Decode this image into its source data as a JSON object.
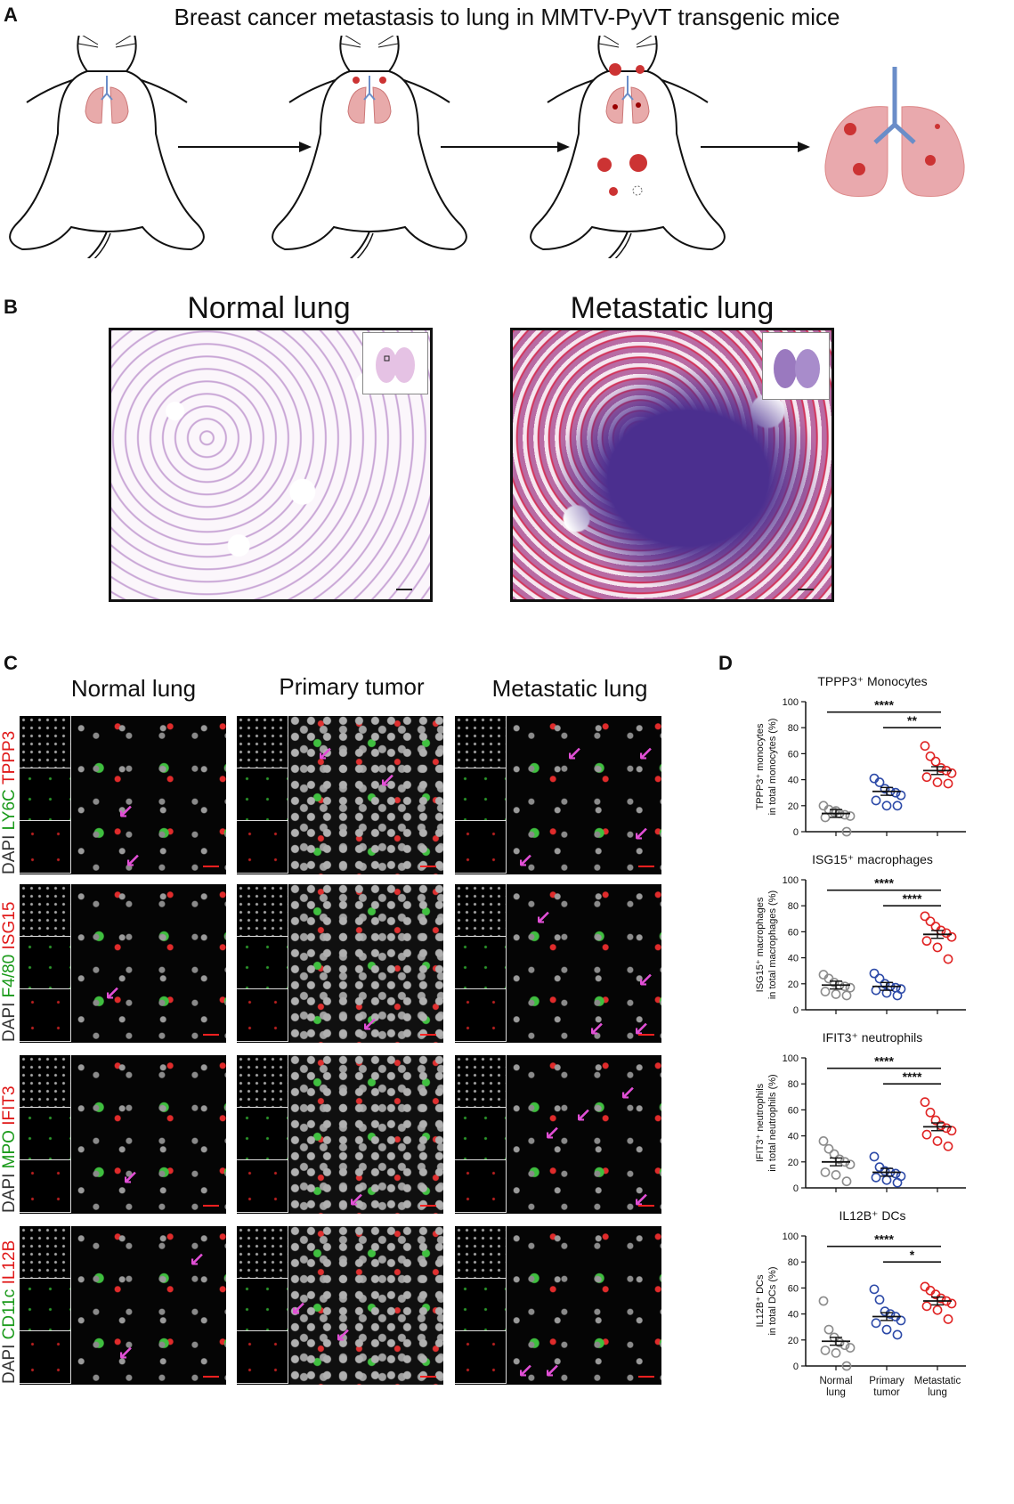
{
  "panels": {
    "a": {
      "letter": "A",
      "title": "Breast cancer metastasis to lung in MMTV-PyVT transgenic mice"
    },
    "b": {
      "letter": "B",
      "left_title": "Normal lung",
      "right_title": "Metastatic lung"
    },
    "c": {
      "letter": "C",
      "columns": [
        "Normal lung",
        "Primary tumor",
        "Metastatic lung"
      ],
      "rows": [
        {
          "l1": "DAPI",
          "l2": "LY6C",
          "l3": "TPPP3"
        },
        {
          "l1": "DAPI",
          "l2": "F4/80",
          "l3": "ISG15"
        },
        {
          "l1": "DAPI",
          "l2": "MPO",
          "l3": "IFIT3"
        },
        {
          "l1": "DAPI",
          "l2": "CD11c",
          "l3": "IL12B"
        }
      ]
    },
    "d": {
      "letter": "D"
    }
  },
  "colors": {
    "normal": "#8c8c8c",
    "primary": "#2d4aa8",
    "metastatic": "#e02424",
    "arrow": "#e24fd6"
  },
  "chart_data": [
    {
      "type": "scatter",
      "title": "TPPP3⁺ Monocytes",
      "ylabel_line1": "TPPP3⁺ monocytes",
      "ylabel_line2": "in total monocytes (%)",
      "ylim": [
        0,
        100
      ],
      "yticks": [
        0,
        20,
        40,
        60,
        80,
        100
      ],
      "categories": [
        "Normal lung",
        "Primary tumor",
        "Metastatic lung"
      ],
      "series": [
        {
          "values": [
            20,
            17,
            15,
            14,
            13,
            12,
            11,
            16,
            0
          ],
          "mean": 14
        },
        {
          "values": [
            41,
            38,
            33,
            31,
            30,
            28,
            24,
            20,
            20
          ],
          "mean": 31
        },
        {
          "values": [
            66,
            58,
            54,
            49,
            47,
            45,
            42,
            38,
            37
          ],
          "mean": 47
        }
      ],
      "significance": [
        {
          "from": 0,
          "to": 2,
          "label": "****"
        },
        {
          "from": 1,
          "to": 2,
          "label": "**"
        }
      ]
    },
    {
      "type": "scatter",
      "title": "ISG15⁺ macrophages",
      "ylabel_line1": "ISG15⁺ macrophages",
      "ylabel_line2": "in total macrophages (%)",
      "ylim": [
        0,
        100
      ],
      "yticks": [
        0,
        20,
        40,
        60,
        80,
        100
      ],
      "categories": [
        "Normal lung",
        "Primary tumor",
        "Metastatic lung"
      ],
      "series": [
        {
          "values": [
            27,
            24,
            21,
            19,
            18,
            17,
            14,
            12,
            11
          ],
          "mean": 19
        },
        {
          "values": [
            28,
            24,
            20,
            18,
            17,
            16,
            15,
            13,
            11
          ],
          "mean": 18
        },
        {
          "values": [
            72,
            68,
            64,
            61,
            59,
            56,
            53,
            48,
            39
          ],
          "mean": 58
        }
      ],
      "significance": [
        {
          "from": 0,
          "to": 2,
          "label": "****"
        },
        {
          "from": 1,
          "to": 2,
          "label": "****"
        }
      ]
    },
    {
      "type": "scatter",
      "title": "IFIT3⁺ neutrophils",
      "ylabel_line1": "IFIT3⁺ neutrophils",
      "ylabel_line2": "in total neutrophils (%)",
      "ylim": [
        0,
        100
      ],
      "yticks": [
        0,
        20,
        40,
        60,
        80,
        100
      ],
      "categories": [
        "Normal lung",
        "Primary tumor",
        "Metastatic lung"
      ],
      "series": [
        {
          "values": [
            36,
            30,
            26,
            22,
            20,
            18,
            12,
            10,
            5
          ],
          "mean": 20
        },
        {
          "values": [
            24,
            16,
            13,
            12,
            11,
            9,
            8,
            6,
            4
          ],
          "mean": 12
        },
        {
          "values": [
            66,
            58,
            52,
            48,
            46,
            44,
            41,
            36,
            32
          ],
          "mean": 47
        }
      ],
      "significance": [
        {
          "from": 0,
          "to": 2,
          "label": "****"
        },
        {
          "from": 1,
          "to": 2,
          "label": "****"
        }
      ]
    },
    {
      "type": "scatter",
      "title": "IL12B⁺ DCs",
      "ylabel_line1": "IL12B⁺ DCs",
      "ylabel_line2": "in total DCs (%)",
      "ylim": [
        0,
        100
      ],
      "yticks": [
        0,
        20,
        40,
        60,
        80,
        100
      ],
      "categories": [
        "Normal lung",
        "Primary tumor",
        "Metastatic lung"
      ],
      "xtick_lines": [
        [
          "Normal",
          "lung"
        ],
        [
          "Primary",
          "tumor"
        ],
        [
          "Metastatic",
          "lung"
        ]
      ],
      "series": [
        {
          "values": [
            50,
            28,
            22,
            18,
            16,
            14,
            12,
            10,
            0
          ],
          "mean": 19
        },
        {
          "values": [
            59,
            51,
            42,
            40,
            38,
            35,
            33,
            28,
            24
          ],
          "mean": 38
        },
        {
          "values": [
            61,
            58,
            55,
            52,
            50,
            48,
            46,
            43,
            36
          ],
          "mean": 50
        }
      ],
      "significance": [
        {
          "from": 0,
          "to": 2,
          "label": "****"
        },
        {
          "from": 1,
          "to": 2,
          "label": "*"
        }
      ]
    }
  ]
}
